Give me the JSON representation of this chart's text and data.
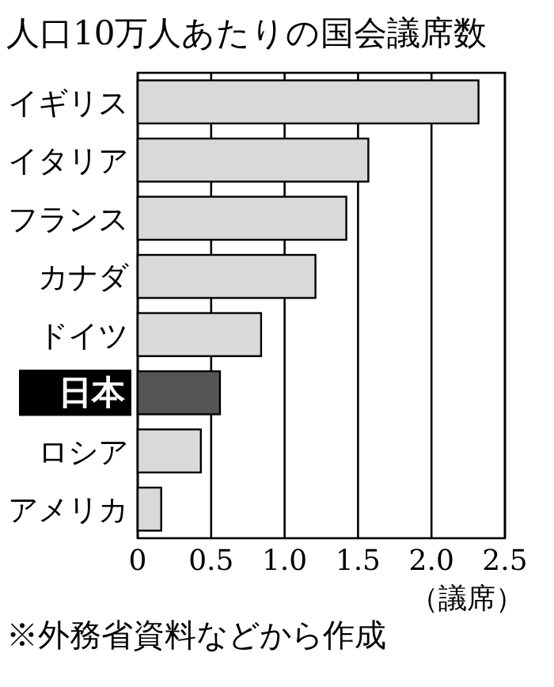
{
  "chart_data": {
    "type": "bar",
    "orientation": "horizontal",
    "title": "人口10万人あたりの国会議席数",
    "xlabel": "（議席）",
    "categories": [
      "イギリス",
      "イタリア",
      "フランス",
      "カナダ",
      "ドイツ",
      "日本",
      "ロシア",
      "アメリカ"
    ],
    "values": [
      2.32,
      1.57,
      1.42,
      1.21,
      0.84,
      0.56,
      0.43,
      0.16
    ],
    "colors": [
      "#d9d9d9",
      "#d9d9d9",
      "#d9d9d9",
      "#d9d9d9",
      "#d9d9d9",
      "#555555",
      "#d9d9d9",
      "#d9d9d9"
    ],
    "xlim": [
      0,
      2.5
    ],
    "xticks": [
      0,
      {
        "value": 0.5,
        "label": "0.5"
      },
      {
        "value": 1,
        "label": "1.0"
      },
      {
        "value": 1.5,
        "label": "1.5"
      },
      {
        "value": 2,
        "label": "2.0"
      },
      {
        "value": 2.5,
        "label": "2.5"
      }
    ],
    "grid": "x",
    "annotations": [
      "※外務省資料などから作成"
    ]
  }
}
